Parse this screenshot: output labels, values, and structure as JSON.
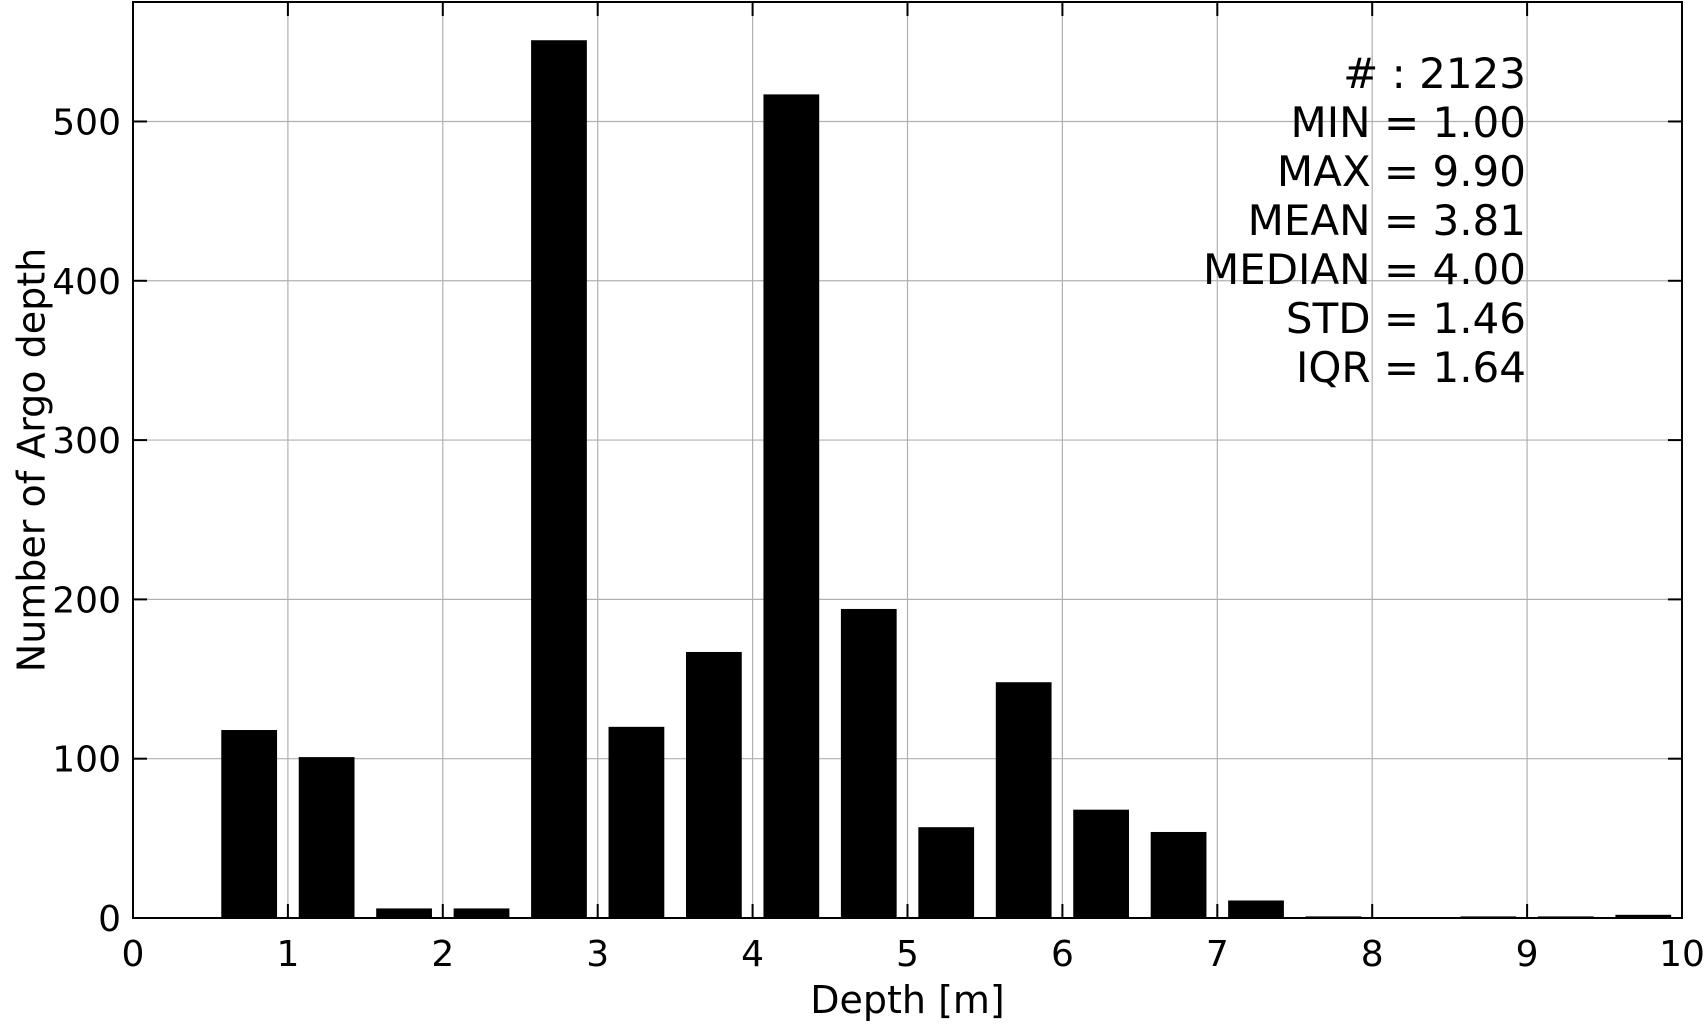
{
  "chart_data": {
    "type": "bar",
    "xlabel": "Depth [m]",
    "ylabel": "Number of Argo depth",
    "xlim": [
      0,
      10
    ],
    "ylim": [
      0,
      575
    ],
    "bin_width": 0.5,
    "bar_width": 0.36,
    "grid": true,
    "x": [
      0.75,
      1.25,
      1.75,
      2.25,
      2.75,
      3.25,
      3.75,
      4.25,
      4.75,
      5.25,
      5.75,
      6.25,
      6.75,
      7.25,
      7.75,
      8.25,
      8.75,
      9.25,
      9.75
    ],
    "values": [
      118,
      101,
      6,
      6,
      551,
      120,
      167,
      517,
      194,
      57,
      148,
      68,
      54,
      11,
      1,
      0,
      1,
      1,
      2
    ],
    "x_ticks": [
      0,
      1,
      2,
      3,
      4,
      5,
      6,
      7,
      8,
      9,
      10
    ],
    "y_ticks": [
      0,
      100,
      200,
      300,
      400,
      500
    ],
    "bar_color": "#000000",
    "grid_color": "#b0b0b0",
    "annotations": [
      "# : 2123",
      "MIN = 1.00",
      "MAX =  9.90",
      "MEAN = 3.81",
      "MEDIAN = 4.00",
      "STD = 1.46",
      "IQR = 1.64"
    ]
  }
}
